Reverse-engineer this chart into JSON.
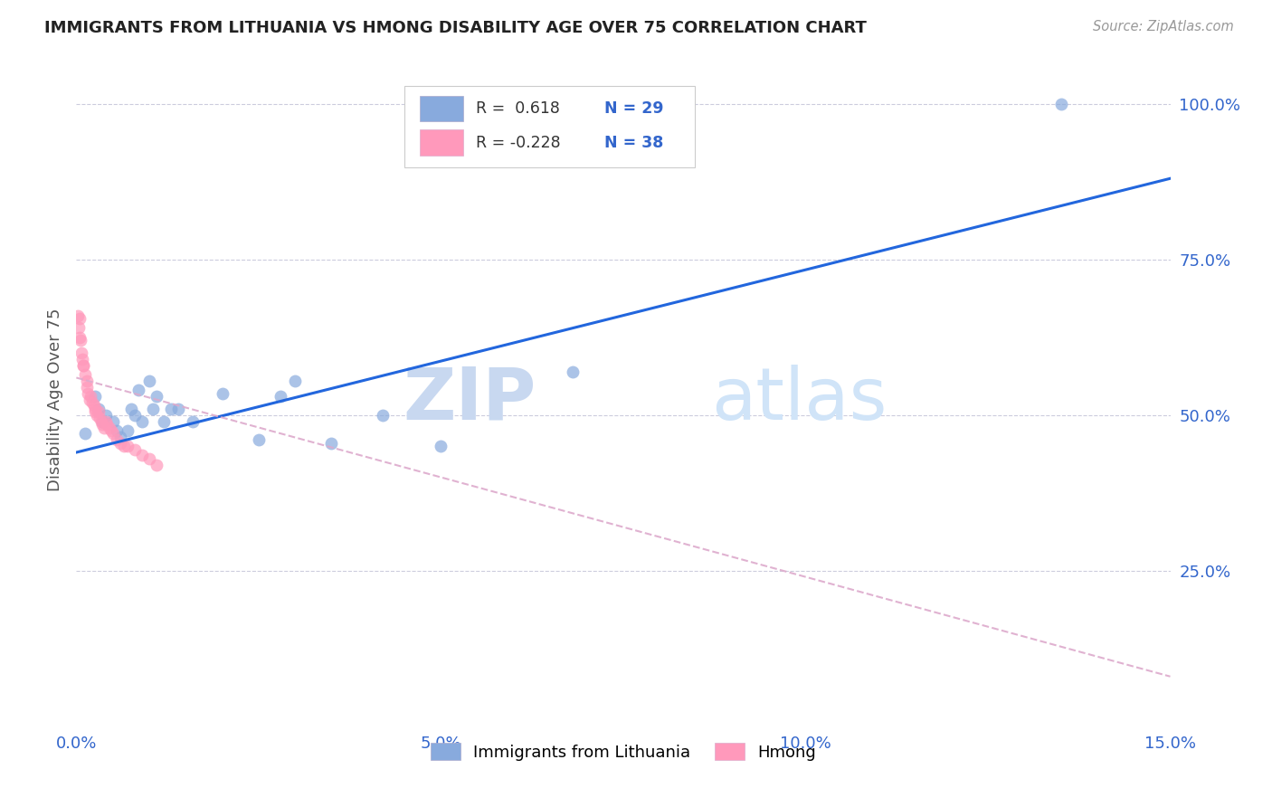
{
  "title": "IMMIGRANTS FROM LITHUANIA VS HMONG DISABILITY AGE OVER 75 CORRELATION CHART",
  "source": "Source: ZipAtlas.com",
  "ylabel": "Disability Age Over 75",
  "xmin": 0.0,
  "xmax": 0.15,
  "ymin": 0.0,
  "ymax": 1.05,
  "yticks": [
    0.25,
    0.5,
    0.75,
    1.0
  ],
  "ytick_labels": [
    "25.0%",
    "50.0%",
    "75.0%",
    "100.0%"
  ],
  "xticks": [
    0.0,
    0.05,
    0.1,
    0.15
  ],
  "xtick_labels": [
    "0.0%",
    "5.0%",
    "10.0%",
    "15.0%"
  ],
  "watermark_zip": "ZIP",
  "watermark_atlas": "atlas",
  "legend_r1": "R =  0.618",
  "legend_n1": "N = 29",
  "legend_r2": "R = -0.228",
  "legend_n2": "N = 38",
  "color_blue": "#88AADD",
  "color_pink": "#FF99BB",
  "color_line_blue": "#2266DD",
  "color_line_pink": "#DDAACC",
  "blue_line_x0": 0.0,
  "blue_line_y0": 0.44,
  "blue_line_x1": 0.15,
  "blue_line_y1": 0.88,
  "pink_line_x0": 0.0,
  "pink_line_y0": 0.56,
  "pink_line_x1": 0.15,
  "pink_line_y1": 0.08,
  "lithuania_x": [
    0.0012,
    0.0025,
    0.003,
    0.0035,
    0.004,
    0.005,
    0.0055,
    0.006,
    0.007,
    0.0075,
    0.008,
    0.0085,
    0.009,
    0.01,
    0.0105,
    0.011,
    0.012,
    0.013,
    0.014,
    0.016,
    0.02,
    0.025,
    0.028,
    0.03,
    0.035,
    0.042,
    0.05,
    0.068,
    0.135
  ],
  "lithuania_y": [
    0.47,
    0.53,
    0.51,
    0.49,
    0.5,
    0.49,
    0.475,
    0.465,
    0.475,
    0.51,
    0.5,
    0.54,
    0.49,
    0.555,
    0.51,
    0.53,
    0.49,
    0.51,
    0.51,
    0.49,
    0.535,
    0.46,
    0.53,
    0.555,
    0.455,
    0.5,
    0.45,
    0.57,
    1.0
  ],
  "hmong_x": [
    0.0002,
    0.0003,
    0.0004,
    0.0005,
    0.0006,
    0.0007,
    0.0008,
    0.0009,
    0.001,
    0.0012,
    0.0014,
    0.0015,
    0.0016,
    0.0018,
    0.002,
    0.0022,
    0.0024,
    0.0025,
    0.0026,
    0.0028,
    0.003,
    0.0032,
    0.0034,
    0.0036,
    0.0038,
    0.004,
    0.0042,
    0.0045,
    0.0048,
    0.005,
    0.0055,
    0.006,
    0.0065,
    0.007,
    0.008,
    0.009,
    0.01,
    0.011
  ],
  "hmong_y": [
    0.66,
    0.64,
    0.655,
    0.625,
    0.62,
    0.6,
    0.59,
    0.58,
    0.58,
    0.565,
    0.555,
    0.545,
    0.535,
    0.525,
    0.53,
    0.52,
    0.515,
    0.51,
    0.505,
    0.5,
    0.505,
    0.495,
    0.49,
    0.485,
    0.48,
    0.49,
    0.485,
    0.48,
    0.475,
    0.47,
    0.46,
    0.455,
    0.45,
    0.45,
    0.445,
    0.435,
    0.43,
    0.42
  ]
}
